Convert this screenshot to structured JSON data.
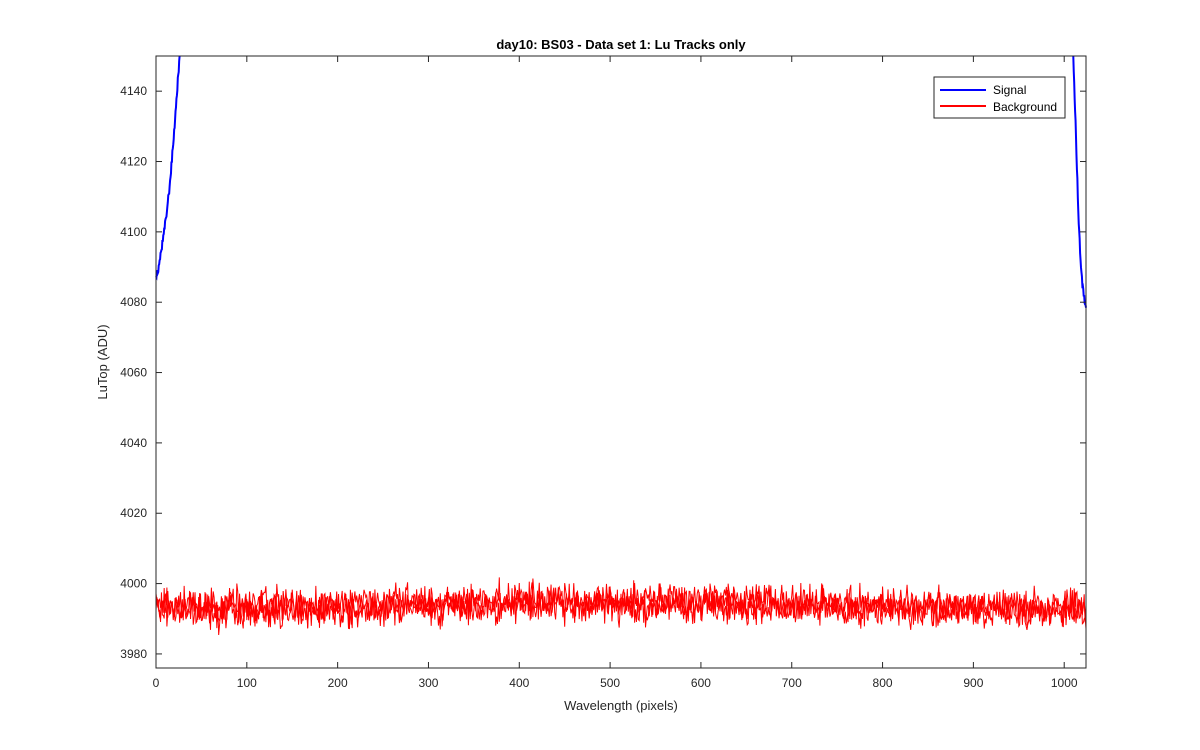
{
  "chart_data": {
    "type": "line",
    "title": "day10: BS03 - Data set 1: Lu Tracks only",
    "xlabel": "Wavelength (pixels)",
    "ylabel": "LuTop (ADU)",
    "xlim": [
      0,
      1024
    ],
    "ylim": [
      3976,
      4150
    ],
    "xticks": [
      0,
      100,
      200,
      300,
      400,
      500,
      600,
      700,
      800,
      900,
      1000
    ],
    "yticks": [
      3980,
      4000,
      4020,
      4040,
      4060,
      4080,
      4100,
      4120,
      4140
    ],
    "grid": false,
    "legend_position": "top-right",
    "series": [
      {
        "name": "Signal",
        "color": "#0000ff",
        "segments": [
          {
            "x": [
              0,
              3,
              6,
              9,
              12,
              15,
              18,
              21,
              24,
              26
            ],
            "y": [
              4087,
              4090,
              4095,
              4100,
              4106,
              4113,
              4122,
              4132,
              4143,
              4150
            ]
          },
          {
            "x": [
              1010,
              1012,
              1014,
              1016,
              1018,
              1020,
              1022,
              1024
            ],
            "y": [
              4150,
              4135,
              4118,
              4103,
              4092,
              4085,
              4081,
              4079
            ]
          }
        ]
      },
      {
        "name": "Background",
        "color": "#ff0000",
        "band": {
          "x": [
            0,
            100,
            200,
            300,
            400,
            500,
            600,
            700,
            800,
            900,
            1024
          ],
          "center": [
            3993.5,
            3993,
            3993.5,
            3994,
            3994.5,
            3994.5,
            3994.5,
            3994,
            3993.5,
            3993,
            3992.5
          ],
          "halfwidth": 4.5
        }
      }
    ]
  }
}
